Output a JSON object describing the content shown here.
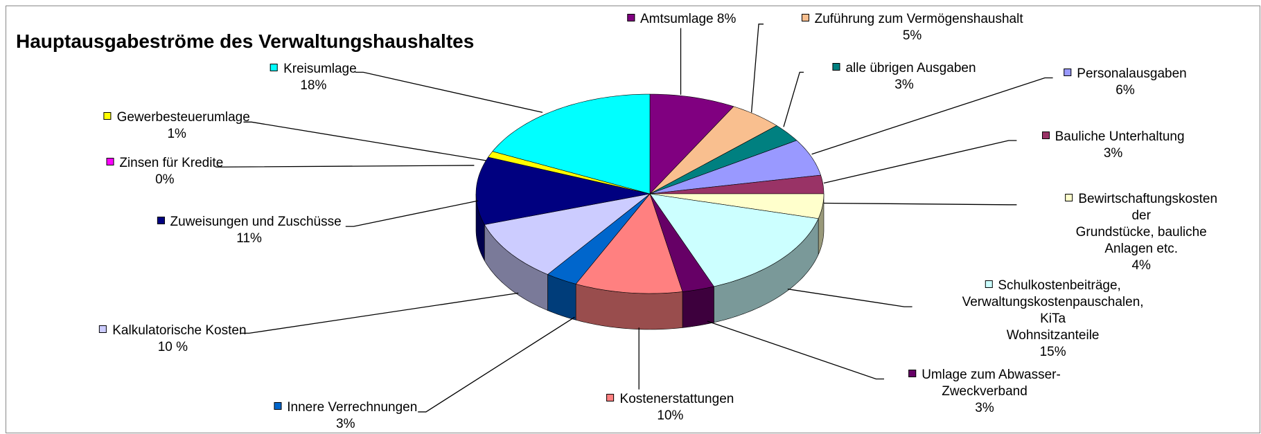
{
  "chart_data": {
    "type": "pie",
    "title": "Hauptausgabeströme des Verwaltungshaushaltes",
    "categories": [
      "Amtsumlage",
      "Zuführung zum Vermögenshaushalt",
      "alle übrigen Ausgaben",
      "Personalausgaben",
      "Bauliche Unterhaltung",
      "Bewirtschaftungskosten der\nGrundstücke, bauliche Anlagen etc.",
      "Schulkostenbeiträge,\nVerwaltungskostenpauschalen, KiTa\nWohnsitzanteile",
      "Umlage zum Abwasser-\nZweckverband",
      "Kostenerstattungen",
      "Innere Verrechnungen",
      "Kalkulatorische Kosten",
      "Zuweisungen und Zuschüsse",
      "Zinsen für Kredite",
      "Gewerbesteuerumlage",
      "Kreisumlage"
    ],
    "values": [
      8,
      5,
      3,
      6,
      3,
      4,
      15,
      3,
      10,
      3,
      10,
      11,
      0,
      1,
      18
    ],
    "value_labels": [
      "8%",
      "5%",
      "3%",
      "6%",
      "3%",
      "4%",
      "15%",
      "3%",
      "10%",
      "3%",
      "10 %",
      "11%",
      "0%",
      "1%",
      "18%"
    ],
    "colors": [
      "#800080",
      "#f9bf8f",
      "#008080",
      "#9999ff",
      "#993366",
      "#ffffcc",
      "#ccffff",
      "#660066",
      "#ff8080",
      "#0066cc",
      "#ccccff",
      "#000080",
      "#ff00ff",
      "#ffff00",
      "#00ffff"
    ]
  }
}
